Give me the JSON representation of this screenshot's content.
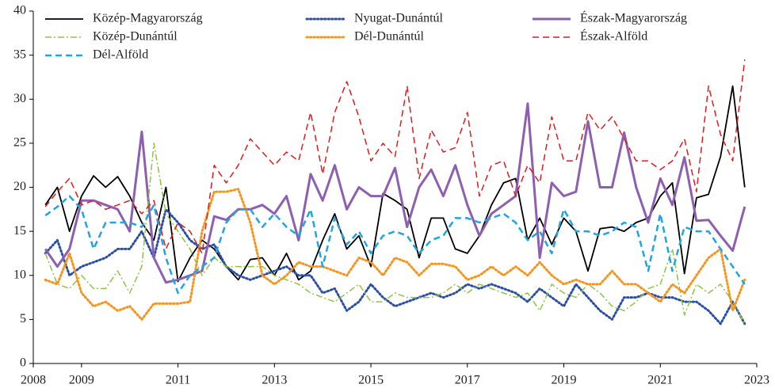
{
  "chart_data": {
    "type": "line",
    "x_start": 2008.25,
    "x_step": 0.25,
    "xlim": [
      2008,
      2023
    ],
    "xticks": [
      2008,
      2009,
      2011,
      2013,
      2015,
      2017,
      2019,
      2021,
      2023
    ],
    "ylim": [
      0,
      40
    ],
    "yticks": [
      0,
      5,
      10,
      15,
      20,
      25,
      30,
      35,
      40
    ],
    "grid": false,
    "legend": "top",
    "series": [
      {
        "name": "Közép-Magyarország",
        "color": "#000000",
        "style": "solid",
        "linewidth": 1.8,
        "values": [
          18,
          20,
          15,
          19,
          21.3,
          20,
          21.2,
          19,
          16,
          14,
          20,
          9.3,
          12,
          14,
          13,
          11,
          9.5,
          11.8,
          12,
          10,
          12.5,
          9.5,
          10.5,
          14,
          17,
          13,
          14.5,
          11,
          19.3,
          18.5,
          17.5,
          12,
          16.5,
          16.5,
          13,
          12.5,
          14.5,
          18,
          20.5,
          21,
          14,
          16.5,
          13.5,
          16.5,
          15,
          10.5,
          15.3,
          15.5,
          15,
          16,
          16.5,
          19,
          20.5,
          10.2,
          18.8,
          19.2,
          23.5,
          31.5,
          20
        ]
      },
      {
        "name": "Nyugat-Dunántúl",
        "color": "#2b4ea8",
        "style": "dotted",
        "linewidth": 3,
        "values": [
          12.5,
          14,
          10,
          11,
          11.5,
          12,
          13,
          13,
          15,
          12,
          17.5,
          16,
          14,
          13,
          13.5,
          11,
          10,
          9.5,
          10,
          10.5,
          11,
          10,
          10,
          8,
          8.5,
          6,
          7,
          9,
          7.5,
          6.5,
          7,
          7.5,
          8,
          7.5,
          8,
          9,
          8.5,
          9,
          8.5,
          8,
          7,
          8.5,
          7.5,
          6.5,
          9,
          7.5,
          6,
          5,
          7.5,
          7.5,
          8,
          7.5,
          7.5,
          7,
          7,
          6,
          4.5,
          7,
          4.5
        ]
      },
      {
        "name": "Észak-Magyarország",
        "color": "#8e5fb0",
        "style": "solid",
        "linewidth": 3,
        "values": [
          13,
          11,
          13,
          18.5,
          18.5,
          18,
          17.5,
          15,
          26.3,
          12,
          9.2,
          9.5,
          10,
          10.5,
          16.7,
          16.3,
          17.5,
          17.5,
          18,
          17,
          19,
          14,
          21.5,
          18.5,
          22.5,
          17.5,
          20,
          19,
          19,
          22.2,
          15.5,
          20,
          22,
          19,
          22.5,
          18,
          14.5,
          17,
          18,
          19,
          29.5,
          12,
          20.5,
          19,
          19.5,
          27.5,
          20,
          20,
          26.2,
          20,
          16,
          21,
          18,
          23.4,
          16.2,
          16.3,
          14.5,
          12.8,
          17.8
        ]
      },
      {
        "name": "Közép-Dunántúl",
        "color": "#8dc63f",
        "style": "dashdot",
        "linewidth": 1.5,
        "values": [
          12.5,
          9,
          8.5,
          10,
          8.5,
          8.5,
          10.5,
          8,
          11,
          25,
          17,
          15,
          13,
          10,
          12,
          11,
          11,
          11,
          11,
          10,
          9.5,
          9,
          8,
          7.5,
          7,
          8,
          9,
          7,
          7,
          8,
          7.5,
          7.5,
          7.5,
          8,
          9,
          8,
          9,
          8.5,
          8,
          7.5,
          8,
          6,
          9,
          8,
          7.5,
          9,
          8,
          6.5,
          6,
          7,
          8.5,
          9,
          13,
          5.5,
          9,
          8,
          9,
          7,
          4.5
        ]
      },
      {
        "name": "Dél-Dunántúl",
        "color": "#f7941d",
        "style": "dotted",
        "linewidth": 3,
        "values": [
          9.5,
          9,
          12.5,
          8,
          6.5,
          7,
          6,
          6.5,
          5,
          6.8,
          6.8,
          6.8,
          7,
          15,
          19.5,
          19.5,
          19.8,
          16,
          10,
          9,
          10,
          11.5,
          11,
          11,
          10.5,
          10,
          12,
          11.5,
          10,
          12,
          11.5,
          10,
          11.3,
          11.3,
          11,
          9.5,
          10,
          11,
          10,
          11,
          10,
          11.5,
          10,
          9,
          9.5,
          9,
          9,
          10.5,
          9,
          9,
          8,
          7,
          9,
          8,
          10,
          12,
          13,
          6,
          9.5
        ]
      },
      {
        "name": "Észak-Alföld",
        "color": "#e31a1c",
        "style": "dashed",
        "linewidth": 1.5,
        "values": [
          17.8,
          19.5,
          21,
          18,
          18.5,
          17.5,
          18,
          18.5,
          17,
          18.5,
          13,
          16,
          15,
          12.5,
          22.5,
          20.5,
          22.5,
          25.5,
          24,
          22.5,
          24,
          23,
          28.5,
          21.5,
          28.5,
          32,
          28,
          23,
          25,
          23.5,
          31.5,
          21,
          26.5,
          24,
          24.5,
          28.5,
          19,
          22.5,
          23,
          19,
          22.5,
          20.5,
          28,
          23,
          23,
          28.5,
          26.5,
          28,
          25.5,
          23,
          23,
          22,
          23,
          25.5,
          19.5,
          31.5,
          26,
          23,
          34.5
        ]
      },
      {
        "name": "Dél-Alföld",
        "color": "#1fa6e0",
        "style": "dashed",
        "linewidth": 2.5,
        "values": [
          16.8,
          17.8,
          19,
          17.5,
          13,
          16,
          16,
          16,
          15.5,
          18,
          12,
          8,
          10,
          11,
          12,
          16,
          17.5,
          17.5,
          15.5,
          17,
          15.5,
          14.5,
          17.5,
          11,
          16.5,
          13.5,
          15,
          12.5,
          14.5,
          15,
          14.5,
          12.5,
          14,
          14.5,
          16.5,
          16.5,
          16,
          16.5,
          17,
          16,
          14,
          15,
          12.5,
          17.5,
          15,
          15,
          14.5,
          15,
          16,
          15.5,
          10.5,
          17,
          10.5,
          15.5,
          15,
          15,
          13,
          11,
          9
        ]
      }
    ]
  }
}
